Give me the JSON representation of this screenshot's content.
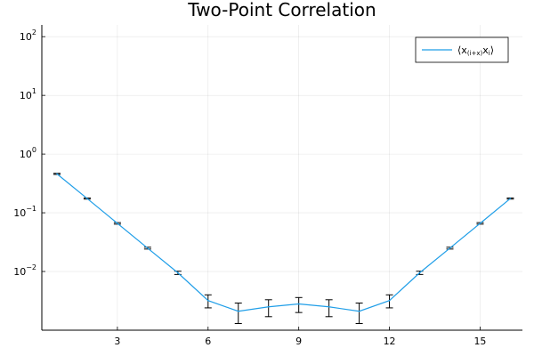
{
  "chart_data": {
    "type": "line",
    "title": "Two-Point Correlation",
    "xlabel": "",
    "ylabel": "",
    "xlim": [
      0.5,
      16.4
    ],
    "ylim_log10": [
      -3.0,
      2.2
    ],
    "y_scale": "log",
    "x_ticks": [
      3,
      6,
      9,
      12,
      15
    ],
    "y_ticks": [
      {
        "base": "10",
        "exp": "−2",
        "value": 0.01
      },
      {
        "base": "10",
        "exp": "−1",
        "value": 0.1
      },
      {
        "base": "10",
        "exp": "0",
        "value": 1
      },
      {
        "base": "10",
        "exp": "1",
        "value": 10
      },
      {
        "base": "10",
        "exp": "2",
        "value": 100
      }
    ],
    "grid": true,
    "legend_position": "top-right",
    "series": [
      {
        "name_main": "⟨x",
        "name_sub": "(i+x)",
        "name_end": "x",
        "name_sub2": "i",
        "name_close": "⟩",
        "color": "#1f9ee8",
        "x": [
          1,
          2,
          3,
          4,
          5,
          6,
          7,
          8,
          9,
          10,
          11,
          12,
          13,
          14,
          15,
          16
        ],
        "y": [
          0.46,
          0.175,
          0.066,
          0.025,
          0.0095,
          0.0032,
          0.0021,
          0.0025,
          0.0028,
          0.0025,
          0.0021,
          0.0032,
          0.0095,
          0.025,
          0.066,
          0.175
        ],
        "yerr": [
          0.01,
          0.004,
          0.002,
          0.0009,
          0.0006,
          0.0008,
          0.0008,
          0.0008,
          0.0008,
          0.0008,
          0.0008,
          0.0008,
          0.0006,
          0.0009,
          0.002,
          0.004
        ]
      }
    ]
  }
}
